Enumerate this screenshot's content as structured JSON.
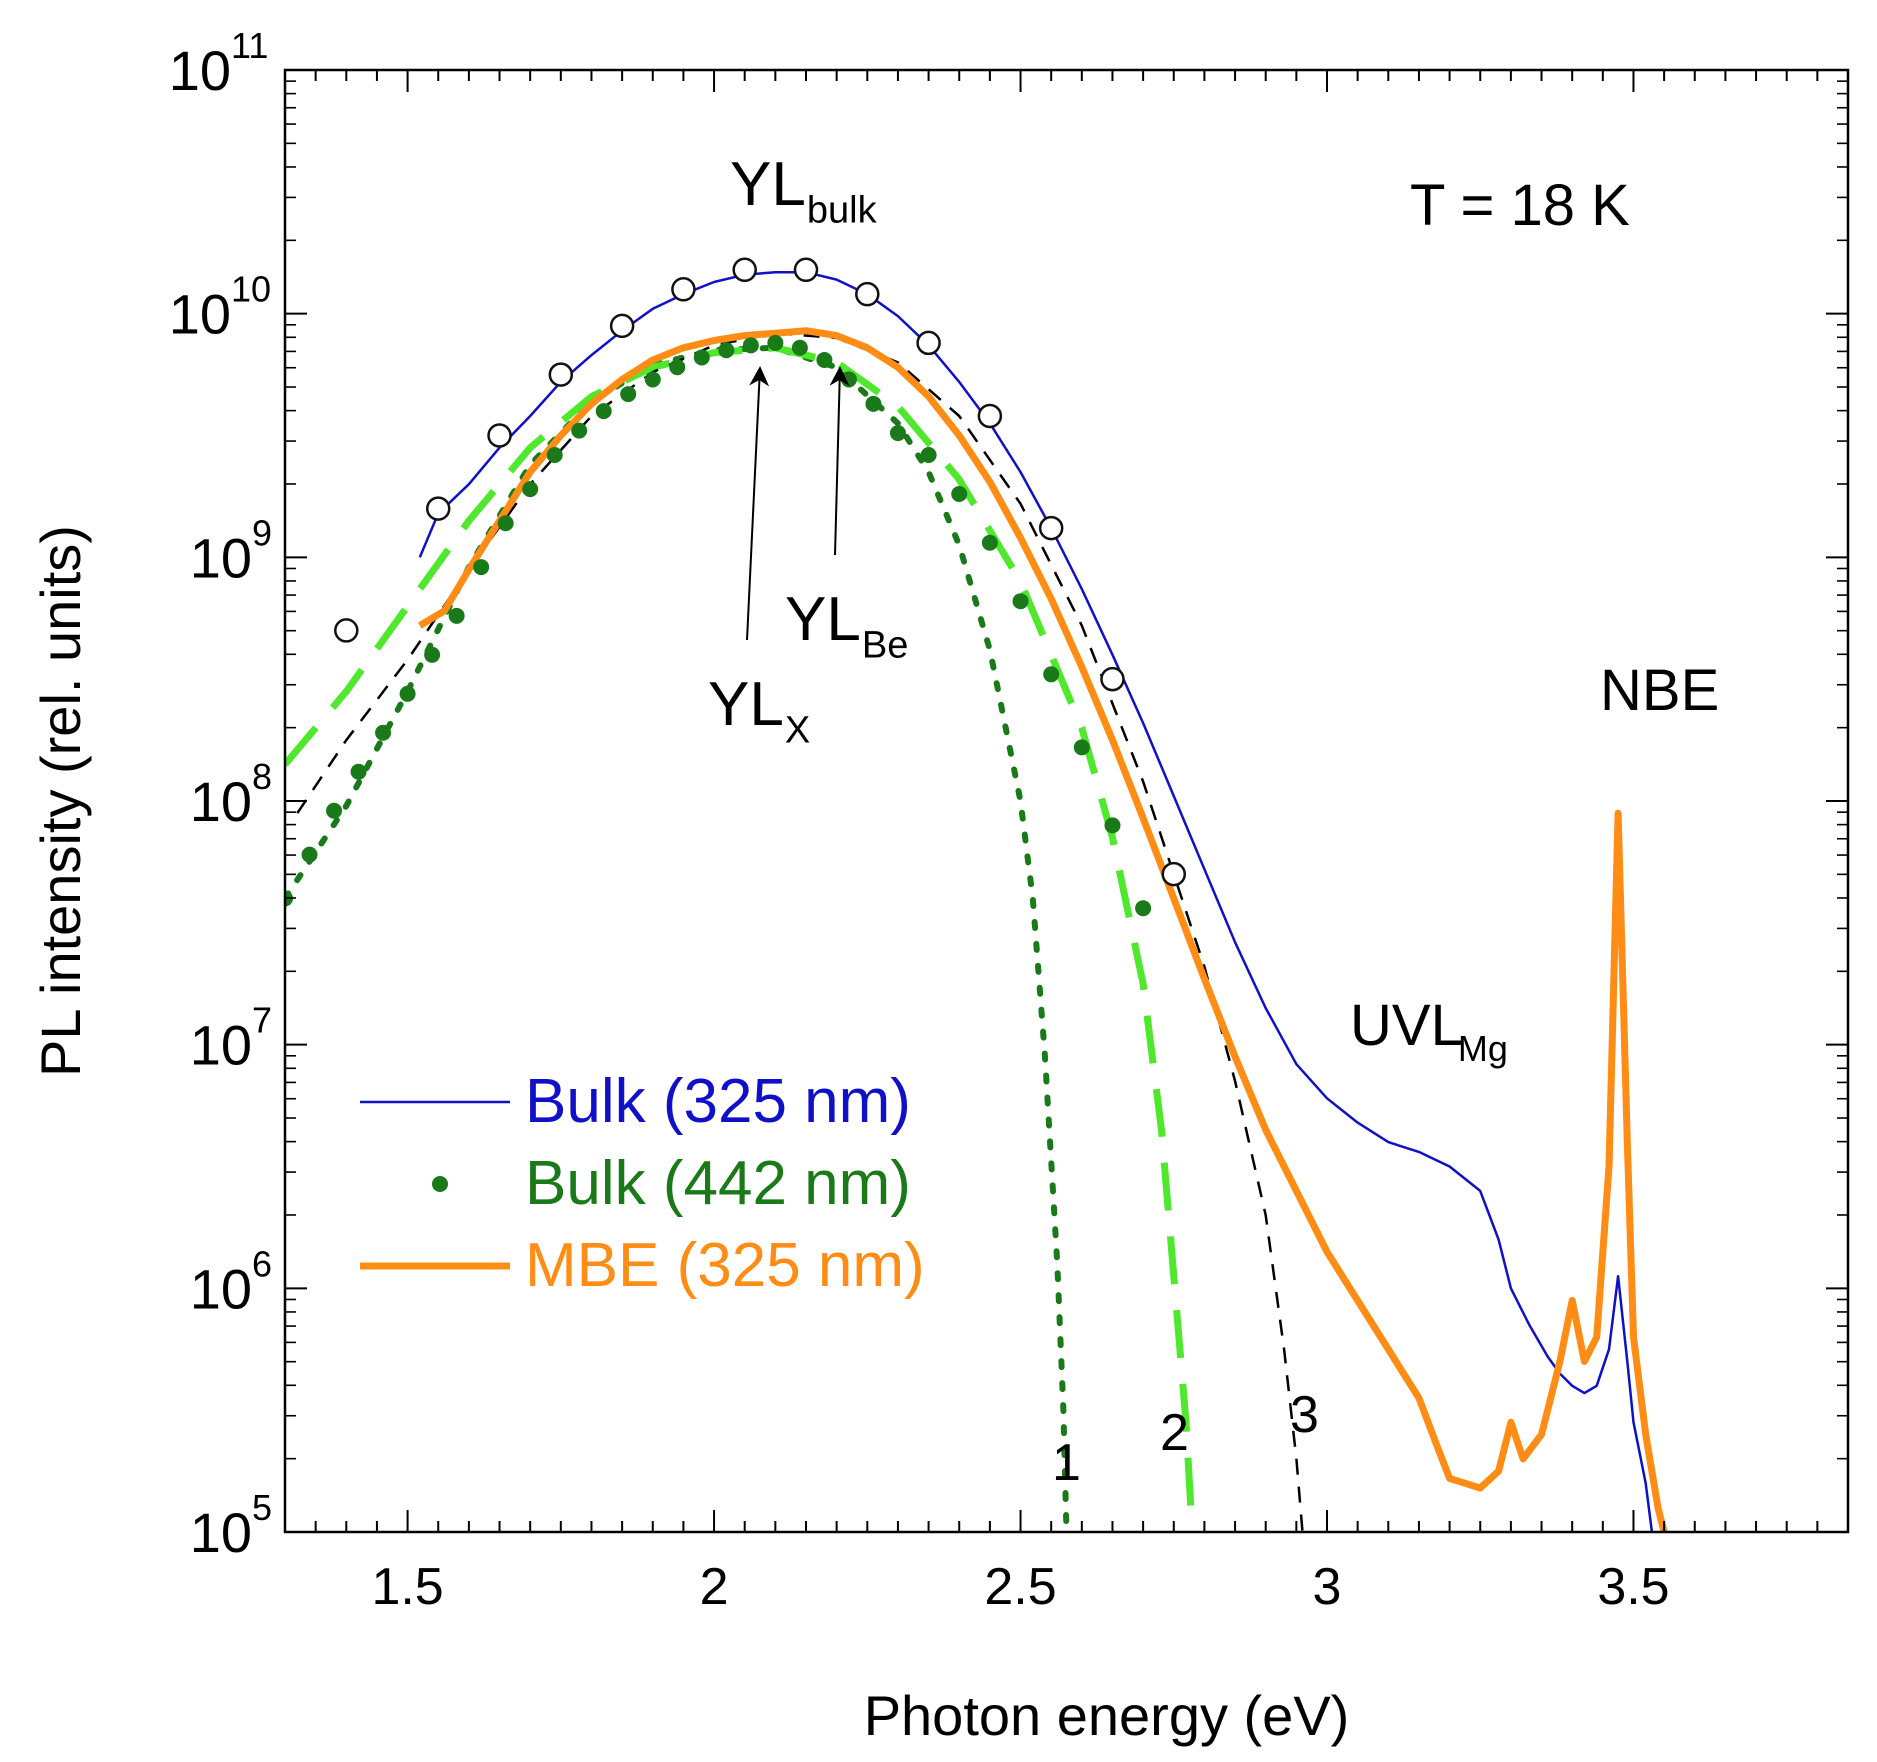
{
  "chart_data": {
    "type": "line",
    "xlabel": "Photon energy (eV)",
    "ylabel": "PL intensity (rel. units)",
    "xlim": [
      1.3,
      3.85
    ],
    "ylim_log10": [
      5,
      11
    ],
    "yscale": "log",
    "x_ticks": [
      {
        "value": 1.5,
        "label": "1.5"
      },
      {
        "value": 2.0,
        "label": "2"
      },
      {
        "value": 2.5,
        "label": "2.5"
      },
      {
        "value": 3.0,
        "label": "3"
      },
      {
        "value": 3.5,
        "label": "3.5"
      }
    ],
    "y_ticks": [
      {
        "exp": 5,
        "base": "10",
        "sup": "5"
      },
      {
        "exp": 6,
        "base": "10",
        "sup": "6"
      },
      {
        "exp": 7,
        "base": "10",
        "sup": "7"
      },
      {
        "exp": 8,
        "base": "10",
        "sup": "8"
      },
      {
        "exp": 9,
        "base": "10",
        "sup": "9"
      },
      {
        "exp": 10,
        "base": "10",
        "sup": "10"
      },
      {
        "exp": 11,
        "base": "10",
        "sup": "11"
      }
    ],
    "series": [
      {
        "name": "Bulk (325 nm)",
        "style": "thin-line",
        "color": "#1010c8",
        "points": [
          [
            1.52,
            9.0
          ],
          [
            1.55,
            9.18
          ],
          [
            1.6,
            9.3
          ],
          [
            1.65,
            9.45
          ],
          [
            1.7,
            9.58
          ],
          [
            1.75,
            9.72
          ],
          [
            1.8,
            9.83
          ],
          [
            1.85,
            9.93
          ],
          [
            1.9,
            10.02
          ],
          [
            1.95,
            10.08
          ],
          [
            2.0,
            10.13
          ],
          [
            2.05,
            10.16
          ],
          [
            2.1,
            10.17
          ],
          [
            2.15,
            10.17
          ],
          [
            2.2,
            10.14
          ],
          [
            2.25,
            10.08
          ],
          [
            2.3,
            9.99
          ],
          [
            2.35,
            9.87
          ],
          [
            2.4,
            9.72
          ],
          [
            2.45,
            9.55
          ],
          [
            2.5,
            9.35
          ],
          [
            2.55,
            9.12
          ],
          [
            2.6,
            8.87
          ],
          [
            2.65,
            8.6
          ],
          [
            2.7,
            8.32
          ],
          [
            2.75,
            8.02
          ],
          [
            2.8,
            7.72
          ],
          [
            2.85,
            7.42
          ],
          [
            2.9,
            7.15
          ],
          [
            2.95,
            6.92
          ],
          [
            3.0,
            6.78
          ],
          [
            3.05,
            6.68
          ],
          [
            3.1,
            6.6
          ],
          [
            3.15,
            6.56
          ],
          [
            3.2,
            6.5
          ],
          [
            3.25,
            6.4
          ],
          [
            3.28,
            6.2
          ],
          [
            3.3,
            6.0
          ],
          [
            3.33,
            5.85
          ],
          [
            3.36,
            5.72
          ],
          [
            3.38,
            5.65
          ],
          [
            3.4,
            5.6
          ],
          [
            3.42,
            5.57
          ],
          [
            3.44,
            5.6
          ],
          [
            3.46,
            5.75
          ],
          [
            3.475,
            6.05
          ],
          [
            3.49,
            5.7
          ],
          [
            3.5,
            5.45
          ],
          [
            3.52,
            5.2
          ],
          [
            3.53,
            5.0
          ]
        ]
      },
      {
        "name": "Bulk (442 nm)",
        "style": "dots",
        "color": "#1a7a1a",
        "points": [
          [
            1.3,
            7.6
          ],
          [
            1.34,
            7.78
          ],
          [
            1.38,
            7.96
          ],
          [
            1.42,
            8.12
          ],
          [
            1.46,
            8.28
          ],
          [
            1.5,
            8.44
          ],
          [
            1.54,
            8.6
          ],
          [
            1.58,
            8.76
          ],
          [
            1.62,
            8.96
          ],
          [
            1.66,
            9.14
          ],
          [
            1.7,
            9.28
          ],
          [
            1.74,
            9.42
          ],
          [
            1.78,
            9.52
          ],
          [
            1.82,
            9.6
          ],
          [
            1.86,
            9.67
          ],
          [
            1.9,
            9.73
          ],
          [
            1.94,
            9.78
          ],
          [
            1.98,
            9.82
          ],
          [
            2.02,
            9.85
          ],
          [
            2.06,
            9.87
          ],
          [
            2.1,
            9.88
          ],
          [
            2.14,
            9.86
          ],
          [
            2.18,
            9.81
          ],
          [
            2.22,
            9.73
          ],
          [
            2.26,
            9.63
          ],
          [
            2.3,
            9.51
          ],
          [
            2.35,
            9.42
          ],
          [
            2.4,
            9.26
          ],
          [
            2.45,
            9.06
          ],
          [
            2.5,
            8.82
          ],
          [
            2.55,
            8.52
          ],
          [
            2.6,
            8.22
          ],
          [
            2.65,
            7.9
          ],
          [
            2.7,
            7.56
          ]
        ]
      },
      {
        "name": "MBE (325 nm)",
        "style": "thick-line",
        "color": "#ff8c14",
        "points": [
          [
            1.52,
            8.72
          ],
          [
            1.56,
            8.78
          ],
          [
            1.6,
            8.95
          ],
          [
            1.65,
            9.15
          ],
          [
            1.7,
            9.35
          ],
          [
            1.75,
            9.5
          ],
          [
            1.8,
            9.63
          ],
          [
            1.85,
            9.73
          ],
          [
            1.9,
            9.81
          ],
          [
            1.95,
            9.86
          ],
          [
            2.0,
            9.89
          ],
          [
            2.05,
            9.91
          ],
          [
            2.1,
            9.92
          ],
          [
            2.15,
            9.93
          ],
          [
            2.2,
            9.91
          ],
          [
            2.25,
            9.86
          ],
          [
            2.3,
            9.78
          ],
          [
            2.35,
            9.66
          ],
          [
            2.4,
            9.5
          ],
          [
            2.45,
            9.31
          ],
          [
            2.5,
            9.08
          ],
          [
            2.55,
            8.83
          ],
          [
            2.6,
            8.55
          ],
          [
            2.65,
            8.25
          ],
          [
            2.7,
            7.93
          ],
          [
            2.75,
            7.6
          ],
          [
            2.8,
            7.27
          ],
          [
            2.85,
            6.95
          ],
          [
            2.9,
            6.65
          ],
          [
            2.95,
            6.4
          ],
          [
            3.0,
            6.15
          ],
          [
            3.05,
            5.95
          ],
          [
            3.1,
            5.75
          ],
          [
            3.15,
            5.55
          ],
          [
            3.18,
            5.35
          ],
          [
            3.2,
            5.22
          ],
          [
            3.25,
            5.18
          ],
          [
            3.28,
            5.25
          ],
          [
            3.3,
            5.45
          ],
          [
            3.32,
            5.3
          ],
          [
            3.35,
            5.4
          ],
          [
            3.38,
            5.7
          ],
          [
            3.4,
            5.95
          ],
          [
            3.42,
            5.7
          ],
          [
            3.44,
            5.8
          ],
          [
            3.46,
            6.5
          ],
          [
            3.475,
            7.95
          ],
          [
            3.49,
            6.6
          ],
          [
            3.5,
            5.8
          ],
          [
            3.52,
            5.4
          ],
          [
            3.54,
            5.1
          ],
          [
            3.55,
            5.0
          ]
        ]
      },
      {
        "name": "YL_bulk data",
        "style": "open-circles",
        "color": "#111111",
        "points": [
          [
            1.4,
            8.7
          ],
          [
            1.55,
            9.2
          ],
          [
            1.65,
            9.5
          ],
          [
            1.75,
            9.75
          ],
          [
            1.85,
            9.95
          ],
          [
            1.95,
            10.1
          ],
          [
            2.05,
            10.18
          ],
          [
            2.15,
            10.18
          ],
          [
            2.25,
            10.08
          ],
          [
            2.35,
            9.88
          ],
          [
            2.45,
            9.58
          ],
          [
            2.55,
            9.12
          ],
          [
            2.65,
            8.5
          ],
          [
            2.75,
            7.7
          ]
        ]
      },
      {
        "name": "1",
        "style": "green-dotted",
        "color": "#1a7a1a",
        "points": [
          [
            1.3,
            7.6
          ],
          [
            1.4,
            7.98
          ],
          [
            1.5,
            8.45
          ],
          [
            1.6,
            8.96
          ],
          [
            1.7,
            9.38
          ],
          [
            1.8,
            9.64
          ],
          [
            1.9,
            9.79
          ],
          [
            2.0,
            9.85
          ],
          [
            2.1,
            9.86
          ],
          [
            2.2,
            9.78
          ],
          [
            2.3,
            9.55
          ],
          [
            2.35,
            9.35
          ],
          [
            2.4,
            9.05
          ],
          [
            2.45,
            8.62
          ],
          [
            2.5,
            8.0
          ],
          [
            2.52,
            7.6
          ],
          [
            2.54,
            6.95
          ],
          [
            2.56,
            6.1
          ],
          [
            2.57,
            5.5
          ],
          [
            2.575,
            5.0
          ]
        ]
      },
      {
        "name": "2",
        "style": "green-dashed",
        "color": "#4fe82c",
        "points": [
          [
            1.3,
            8.15
          ],
          [
            1.4,
            8.45
          ],
          [
            1.5,
            8.8
          ],
          [
            1.6,
            9.15
          ],
          [
            1.7,
            9.45
          ],
          [
            1.8,
            9.66
          ],
          [
            1.9,
            9.78
          ],
          [
            2.0,
            9.84
          ],
          [
            2.1,
            9.86
          ],
          [
            2.2,
            9.8
          ],
          [
            2.3,
            9.62
          ],
          [
            2.4,
            9.32
          ],
          [
            2.5,
            8.9
          ],
          [
            2.6,
            8.3
          ],
          [
            2.65,
            7.85
          ],
          [
            2.7,
            7.25
          ],
          [
            2.73,
            6.65
          ],
          [
            2.75,
            6.05
          ],
          [
            2.77,
            5.45
          ],
          [
            2.78,
            5.0
          ]
        ]
      },
      {
        "name": "3",
        "style": "black-dashed",
        "color": "#000000",
        "points": [
          [
            1.32,
            7.95
          ],
          [
            1.4,
            8.25
          ],
          [
            1.5,
            8.58
          ],
          [
            1.6,
            8.95
          ],
          [
            1.7,
            9.3
          ],
          [
            1.8,
            9.58
          ],
          [
            1.9,
            9.76
          ],
          [
            2.0,
            9.87
          ],
          [
            2.1,
            9.92
          ],
          [
            2.2,
            9.9
          ],
          [
            2.3,
            9.8
          ],
          [
            2.4,
            9.58
          ],
          [
            2.5,
            9.22
          ],
          [
            2.6,
            8.72
          ],
          [
            2.7,
            8.08
          ],
          [
            2.8,
            7.32
          ],
          [
            2.85,
            6.85
          ],
          [
            2.9,
            6.3
          ],
          [
            2.93,
            5.75
          ],
          [
            2.95,
            5.3
          ],
          [
            2.96,
            5.0
          ]
        ]
      }
    ],
    "legend": {
      "placement": "lower-left",
      "entries": [
        {
          "label": "Bulk (325 nm)",
          "color": "#1010c8",
          "marker": "thin-line"
        },
        {
          "label": "Bulk (442 nm)",
          "color": "#1a7a1a",
          "marker": "dot"
        },
        {
          "label": "MBE (325 nm)",
          "color": "#ff8c14",
          "marker": "thick-line"
        }
      ]
    },
    "annotations": {
      "temperature": "T = 18 K",
      "yl_bulk": {
        "main": "YL",
        "sub": "bulk"
      },
      "yl_x": {
        "main": "YL",
        "sub": "X"
      },
      "yl_be": {
        "main": "YL",
        "sub": "Be"
      },
      "uvl_mg": {
        "main": "UVL",
        "sub": "Mg"
      },
      "nbe": "NBE",
      "curve_1": "1",
      "curve_2": "2",
      "curve_3": "3"
    }
  }
}
